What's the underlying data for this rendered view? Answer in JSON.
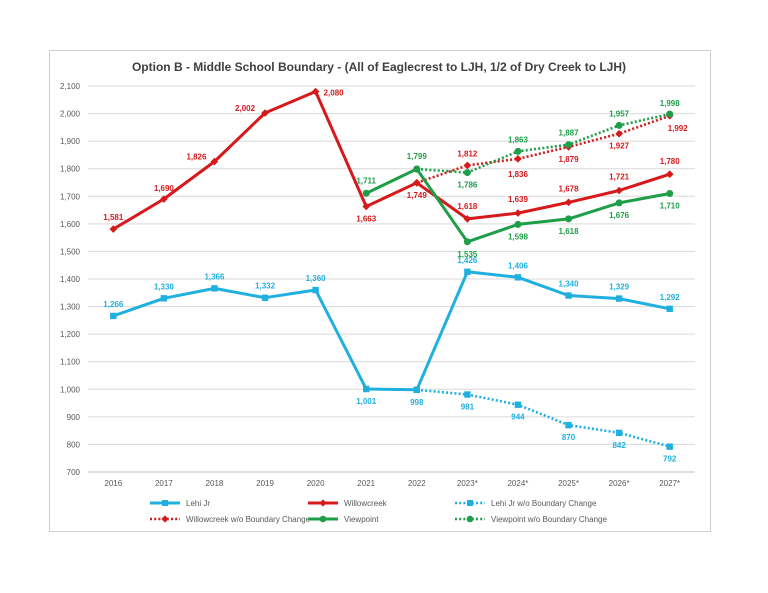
{
  "chart_data": {
    "type": "line",
    "title": "Option B - Middle School Boundary - (All of Eaglecrest to LJH, 1/2 of Dry Creek to LJH)",
    "categories": [
      "2016",
      "2017",
      "2018",
      "2019",
      "2020",
      "2021",
      "2022",
      "2023*",
      "2024*",
      "2025*",
      "2026*",
      "2027*"
    ],
    "ylim": [
      700,
      2100
    ],
    "yticks": [
      "700",
      "800",
      "900",
      "1,000",
      "1,100",
      "1,200",
      "1,300",
      "1,400",
      "1,500",
      "1,600",
      "1,700",
      "1,800",
      "1,900",
      "2,000",
      "2,100"
    ],
    "grid": true,
    "legend_position": "bottom",
    "series": [
      {
        "name": "Lehi Jr",
        "color": "#1fb0e0",
        "style": "solid",
        "marker": "square",
        "values": [
          1266,
          1330,
          1366,
          1332,
          1360,
          1001,
          998,
          1426,
          1406,
          1340,
          1329,
          1292
        ],
        "labels": [
          "1,266",
          "1,330",
          "1,366",
          "1,332",
          "1,360",
          "1,001",
          "998",
          "1,426",
          "1,406",
          "1,340",
          "1,329",
          "1,292"
        ]
      },
      {
        "name": "Willowcreek",
        "color": "#d7191c",
        "style": "solid",
        "marker": "diamond",
        "values": [
          1581,
          1690,
          1826,
          2002,
          2080,
          1663,
          1749,
          1618,
          1639,
          1678,
          1721,
          1780
        ],
        "labels": [
          "1,581",
          "1,690",
          "1,826",
          "2,002",
          "2,080",
          "1,663",
          "1,749",
          "1,618",
          "1,639",
          "1,678",
          "1,721",
          "1,780"
        ]
      },
      {
        "name": "Lehi Jr w/o Boundary Change",
        "color": "#1fb0e0",
        "style": "dotted",
        "marker": "square",
        "values": [
          null,
          null,
          null,
          null,
          null,
          null,
          998,
          981,
          944,
          870,
          842,
          792
        ],
        "labels": [
          null,
          null,
          null,
          null,
          null,
          null,
          null,
          "981",
          "944",
          "870",
          "842",
          "792"
        ]
      },
      {
        "name": "Willowcreek w/o Boundary Change",
        "color": "#d7191c",
        "style": "dotted",
        "marker": "diamond",
        "values": [
          null,
          null,
          null,
          null,
          null,
          null,
          1749,
          1812,
          1836,
          1879,
          1927,
          1992
        ],
        "labels": [
          null,
          null,
          null,
          null,
          null,
          null,
          null,
          "1,812",
          "1,836",
          "1,879",
          "1,927",
          "1,992"
        ]
      },
      {
        "name": "Viewpoint",
        "color": "#1f9e48",
        "style": "solid",
        "marker": "circle",
        "values": [
          null,
          null,
          null,
          null,
          null,
          1711,
          1799,
          1535,
          1598,
          1618,
          1676,
          1710
        ],
        "labels": [
          null,
          null,
          null,
          null,
          null,
          "1,711",
          "1,799",
          "1,535",
          "1,598",
          "1,618",
          "1,676",
          "1,710"
        ]
      },
      {
        "name": "Viewpoint w/o Boundary Change",
        "color": "#1f9e48",
        "style": "dotted",
        "marker": "circle",
        "values": [
          null,
          null,
          null,
          null,
          null,
          null,
          1799,
          1786,
          1863,
          1887,
          1957,
          1998
        ],
        "labels": [
          null,
          null,
          null,
          null,
          null,
          null,
          null,
          "1,786",
          "1,863",
          "1,887",
          "1,957",
          "1,998"
        ]
      }
    ]
  }
}
